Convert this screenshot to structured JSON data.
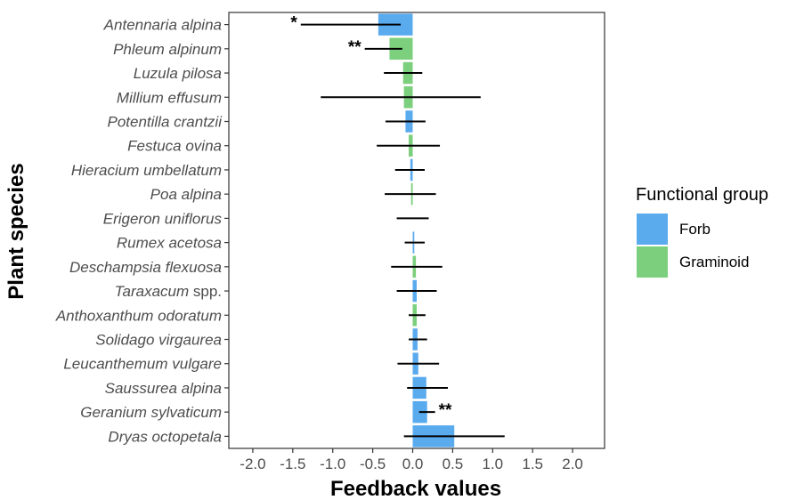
{
  "chart_data": {
    "type": "bar",
    "orientation": "horizontal",
    "xlabel": "Feedback values",
    "ylabel": "Plant species",
    "xlim": [
      -2.3,
      2.4
    ],
    "xticks": [
      -2.0,
      -1.5,
      -1.0,
      -0.5,
      0.0,
      0.5,
      1.0,
      1.5,
      2.0
    ],
    "xtick_labels": [
      "-2.0",
      "-1.5",
      "-1.0",
      "-0.5",
      "0.0",
      "0.5",
      "1.0",
      "1.5",
      "2.0"
    ],
    "grid": false,
    "legend": {
      "title": "Functional group",
      "placement": "right",
      "entries": [
        {
          "label": "Forb",
          "color": "#5aaaee"
        },
        {
          "label": "Graminoid",
          "color": "#7ccf7c"
        }
      ]
    },
    "categories": [
      {
        "name": "Antennaria alpina",
        "suffix": "",
        "group": "Forb",
        "value": -0.43,
        "ci": [
          -1.4,
          -0.15
        ],
        "annotation": "*"
      },
      {
        "name": "Phleum alpinum",
        "suffix": "",
        "group": "Graminoid",
        "value": -0.29,
        "ci": [
          -0.6,
          -0.13
        ],
        "annotation": "**"
      },
      {
        "name": "Luzula pilosa",
        "suffix": "",
        "group": "Graminoid",
        "value": -0.12,
        "ci": [
          -0.36,
          0.12
        ],
        "annotation": ""
      },
      {
        "name": "Millium effusum",
        "suffix": "",
        "group": "Graminoid",
        "value": -0.11,
        "ci": [
          -1.15,
          0.85
        ],
        "annotation": ""
      },
      {
        "name": "Potentilla crantzii",
        "suffix": "",
        "group": "Forb",
        "value": -0.09,
        "ci": [
          -0.34,
          0.16
        ],
        "annotation": ""
      },
      {
        "name": "Festuca ovina",
        "suffix": "",
        "group": "Graminoid",
        "value": -0.05,
        "ci": [
          -0.45,
          0.34
        ],
        "annotation": ""
      },
      {
        "name": "Hieracium umbellatum",
        "suffix": "",
        "group": "Forb",
        "value": -0.03,
        "ci": [
          -0.22,
          0.15
        ],
        "annotation": ""
      },
      {
        "name": "Poa alpina",
        "suffix": "",
        "group": "Graminoid",
        "value": -0.02,
        "ci": [
          -0.35,
          0.29
        ],
        "annotation": ""
      },
      {
        "name": "Erigeron uniflorus",
        "suffix": "",
        "group": "Forb",
        "value": 0.0,
        "ci": [
          -0.2,
          0.2
        ],
        "annotation": ""
      },
      {
        "name": "Rumex acetosa",
        "suffix": "",
        "group": "Forb",
        "value": 0.02,
        "ci": [
          -0.1,
          0.15
        ],
        "annotation": ""
      },
      {
        "name": "Deschampsia flexuosa",
        "suffix": "",
        "group": "Graminoid",
        "value": 0.04,
        "ci": [
          -0.27,
          0.37
        ],
        "annotation": ""
      },
      {
        "name": "Taraxacum",
        "suffix": " spp.",
        "group": "Forb",
        "value": 0.05,
        "ci": [
          -0.2,
          0.3
        ],
        "annotation": ""
      },
      {
        "name": "Anthoxanthum odoratum",
        "suffix": "",
        "group": "Graminoid",
        "value": 0.05,
        "ci": [
          -0.05,
          0.16
        ],
        "annotation": ""
      },
      {
        "name": "Solidago virgaurea",
        "suffix": "",
        "group": "Forb",
        "value": 0.06,
        "ci": [
          -0.05,
          0.18
        ],
        "annotation": ""
      },
      {
        "name": "Leucanthemum vulgare",
        "suffix": "",
        "group": "Forb",
        "value": 0.07,
        "ci": [
          -0.19,
          0.33
        ],
        "annotation": ""
      },
      {
        "name": "Saussurea alpina",
        "suffix": "",
        "group": "Forb",
        "value": 0.17,
        "ci": [
          -0.07,
          0.44
        ],
        "annotation": ""
      },
      {
        "name": "Geranium sylvaticum",
        "suffix": "",
        "group": "Forb",
        "value": 0.18,
        "ci": [
          0.08,
          0.28
        ],
        "annotation": "**"
      },
      {
        "name": "Dryas octopetala",
        "suffix": "",
        "group": "Forb",
        "value": 0.52,
        "ci": [
          -0.11,
          1.15
        ],
        "annotation": ""
      }
    ]
  }
}
